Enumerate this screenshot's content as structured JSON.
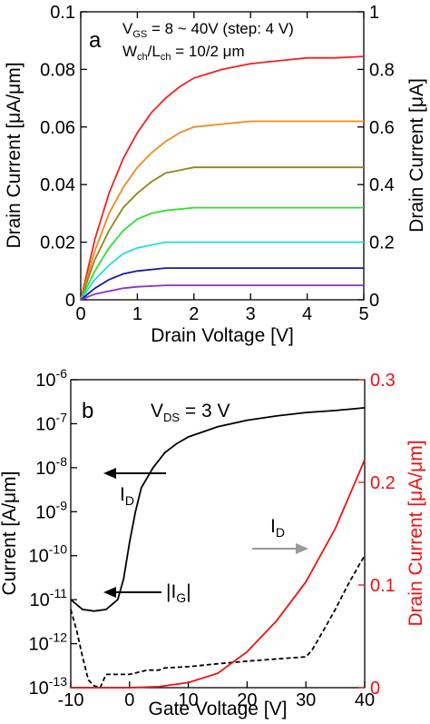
{
  "chart_data": [
    {
      "panel_label": "a",
      "type": "line",
      "xlabel": "Drain Voltage [V]",
      "ylabel": "Drain Current [μA/μm]",
      "y2label": "Drain Current [μA]",
      "xlim": [
        0,
        5
      ],
      "ylim": [
        0,
        0.1
      ],
      "y2lim": [
        0,
        1.0
      ],
      "x_ticks": [
        "0",
        "1",
        "2",
        "3",
        "4",
        "5"
      ],
      "y_ticks": [
        "0",
        "0.02",
        "0.04",
        "0.06",
        "0.08",
        "0.1"
      ],
      "y2_ticks": [
        "0",
        "0.2",
        "0.4",
        "0.6",
        "0.8",
        "1"
      ],
      "annotations": {
        "line1_main": "V",
        "line1_sub": "GS",
        "line1_rest": " = 8 ~ 40V (step: 4 V)",
        "line2_a": "W",
        "line2_a_sub": "ch",
        "line2_b": "/L",
        "line2_b_sub": "ch",
        "line2_rest": " = 10/2 μm"
      },
      "grid": false,
      "series": [
        {
          "color": "#ee2222",
          "values": [
            [
              0,
              0
            ],
            [
              0.25,
              0.021
            ],
            [
              0.5,
              0.037
            ],
            [
              0.75,
              0.049
            ],
            [
              1,
              0.058
            ],
            [
              1.25,
              0.065
            ],
            [
              1.5,
              0.07
            ],
            [
              1.75,
              0.074
            ],
            [
              2,
              0.077
            ],
            [
              2.5,
              0.08
            ],
            [
              3,
              0.082
            ],
            [
              3.5,
              0.083
            ],
            [
              4,
              0.084
            ],
            [
              4.5,
              0.084
            ],
            [
              5,
              0.0845
            ]
          ]
        },
        {
          "color": "#f08a20",
          "values": [
            [
              0,
              0
            ],
            [
              0.25,
              0.017
            ],
            [
              0.5,
              0.03
            ],
            [
              0.75,
              0.039
            ],
            [
              1,
              0.046
            ],
            [
              1.25,
              0.051
            ],
            [
              1.5,
              0.055
            ],
            [
              1.75,
              0.058
            ],
            [
              2,
              0.06
            ],
            [
              2.5,
              0.061
            ],
            [
              3,
              0.062
            ],
            [
              4,
              0.062
            ],
            [
              5,
              0.062
            ]
          ]
        },
        {
          "color": "#8a8a1a",
          "values": [
            [
              0,
              0
            ],
            [
              0.25,
              0.014
            ],
            [
              0.5,
              0.024
            ],
            [
              0.75,
              0.032
            ],
            [
              1,
              0.037
            ],
            [
              1.25,
              0.041
            ],
            [
              1.5,
              0.044
            ],
            [
              1.75,
              0.045
            ],
            [
              2,
              0.046
            ],
            [
              2.5,
              0.046
            ],
            [
              3,
              0.046
            ],
            [
              4,
              0.046
            ],
            [
              5,
              0.046
            ]
          ]
        },
        {
          "color": "#33dd33",
          "values": [
            [
              0,
              0
            ],
            [
              0.25,
              0.01
            ],
            [
              0.5,
              0.018
            ],
            [
              0.75,
              0.024
            ],
            [
              1,
              0.028
            ],
            [
              1.25,
              0.03
            ],
            [
              1.5,
              0.031
            ],
            [
              2,
              0.032
            ],
            [
              3,
              0.032
            ],
            [
              4,
              0.032
            ],
            [
              5,
              0.032
            ]
          ]
        },
        {
          "color": "#22dddd",
          "values": [
            [
              0,
              0
            ],
            [
              0.25,
              0.007
            ],
            [
              0.5,
              0.012
            ],
            [
              0.75,
              0.016
            ],
            [
              1,
              0.018
            ],
            [
              1.5,
              0.02
            ],
            [
              2,
              0.02
            ],
            [
              3,
              0.02
            ],
            [
              4,
              0.02
            ],
            [
              5,
              0.02
            ]
          ]
        },
        {
          "color": "#1a1aa0",
          "values": [
            [
              0,
              0
            ],
            [
              0.25,
              0.004
            ],
            [
              0.5,
              0.007
            ],
            [
              0.75,
              0.009
            ],
            [
              1,
              0.01
            ],
            [
              1.5,
              0.011
            ],
            [
              2,
              0.011
            ],
            [
              3,
              0.011
            ],
            [
              4,
              0.011
            ],
            [
              5,
              0.011
            ]
          ]
        },
        {
          "color": "#8833cc",
          "values": [
            [
              0,
              0
            ],
            [
              0.25,
              0.002
            ],
            [
              0.5,
              0.003
            ],
            [
              0.75,
              0.004
            ],
            [
              1,
              0.0045
            ],
            [
              1.5,
              0.005
            ],
            [
              2,
              0.005
            ],
            [
              3,
              0.005
            ],
            [
              4,
              0.005
            ],
            [
              5,
              0.005
            ]
          ]
        }
      ]
    },
    {
      "panel_label": "b",
      "type": "line",
      "xlabel": "Gate Voltage [V]",
      "ylabel": "Current [A/μm]",
      "y2label": "Drain Current [μA/μm]",
      "xlim": [
        -10,
        40
      ],
      "y_scale": "log",
      "ylim": [
        1e-13,
        1e-06
      ],
      "y2lim": [
        0,
        0.3
      ],
      "x_ticks": [
        "-10",
        "0",
        "10",
        "20",
        "30",
        "40"
      ],
      "y_tick_base": "10",
      "y_tick_exponents": [
        "-6",
        "-7",
        "-8",
        "-9",
        "-10",
        "-11",
        "-12",
        "-13"
      ],
      "y2_ticks": [
        "0",
        "0.1",
        "0.2",
        "0.3"
      ],
      "annotations": {
        "vds_main": "V",
        "vds_sub": "DS",
        "vds_rest": " = 3 V",
        "id_left_main": "I",
        "id_left_sub": "D",
        "id_right_main": "I",
        "id_right_sub": "D",
        "ig_prefix": "|I",
        "ig_sub": "G",
        "ig_suffix": "|"
      },
      "grid": false,
      "series": [
        {
          "color": "#000000",
          "style": "solid",
          "axis": "left-log",
          "values": [
            [
              -10,
              1e-11
            ],
            [
              -8,
              6e-12
            ],
            [
              -6,
              5.5e-12
            ],
            [
              -4,
              6e-12
            ],
            [
              -2,
              1e-11
            ],
            [
              -1,
              3e-11
            ],
            [
              0,
              2e-10
            ],
            [
              1,
              1e-09
            ],
            [
              2,
              3.5e-09
            ],
            [
              4,
              1e-08
            ],
            [
              6,
              2.2e-08
            ],
            [
              8,
              3.5e-08
            ],
            [
              10,
              5e-08
            ],
            [
              15,
              8.5e-08
            ],
            [
              20,
              1.2e-07
            ],
            [
              25,
              1.5e-07
            ],
            [
              30,
              1.8e-07
            ],
            [
              35,
              2e-07
            ],
            [
              40,
              2.3e-07
            ]
          ]
        },
        {
          "color": "#000000",
          "style": "dashed",
          "axis": "left-log",
          "values": [
            [
              -10,
              6e-12
            ],
            [
              -9,
              2e-12
            ],
            [
              -8,
              5e-13
            ],
            [
              -7,
              1.5e-13
            ],
            [
              -6,
              1.1e-13
            ],
            [
              -5,
              1e-13
            ],
            [
              -4,
              2e-13
            ],
            [
              -3,
              2e-13
            ],
            [
              0,
              2e-13
            ],
            [
              3,
              2.5e-13
            ],
            [
              5,
              2.5e-13
            ],
            [
              6,
              2.8e-13
            ],
            [
              10,
              3e-13
            ],
            [
              15,
              3.5e-13
            ],
            [
              20,
              4e-13
            ],
            [
              25,
              4.5e-13
            ],
            [
              30,
              5e-13
            ],
            [
              31,
              7e-13
            ],
            [
              33,
              2e-12
            ],
            [
              35,
              6e-12
            ],
            [
              37,
              2e-11
            ],
            [
              39,
              6e-11
            ],
            [
              40,
              1e-10
            ]
          ]
        },
        {
          "color": "#ee1111",
          "style": "solid",
          "axis": "right-linear",
          "values": [
            [
              -10,
              0
            ],
            [
              0,
              0
            ],
            [
              5,
              0.001
            ],
            [
              10,
              0.005
            ],
            [
              15,
              0.014
            ],
            [
              20,
              0.035
            ],
            [
              25,
              0.065
            ],
            [
              30,
              0.103
            ],
            [
              35,
              0.155
            ],
            [
              40,
              0.222
            ]
          ]
        }
      ],
      "arrows": [
        {
          "direction": "left",
          "color": "#000000",
          "label": "I_D"
        },
        {
          "direction": "right",
          "color": "#999999",
          "label": "I_D"
        },
        {
          "direction": "left",
          "color": "#000000",
          "label": "|I_G|"
        }
      ]
    }
  ]
}
